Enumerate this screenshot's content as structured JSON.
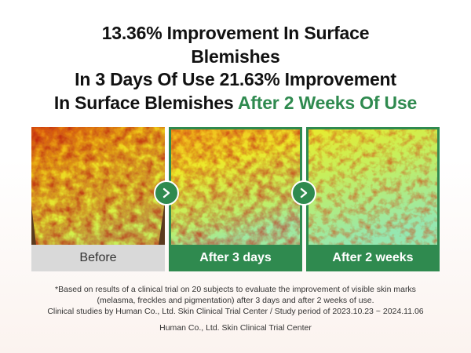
{
  "headline": {
    "line1": "13.36% Improvement In Surface",
    "line2": "Blemishes",
    "line3": "In 3 Days Of Use 21.63% Improvement",
    "line4_plain": "In Surface Blemishes ",
    "line4_accent": "After 2 Weeks Of Use"
  },
  "panels": [
    {
      "label": "Before"
    },
    {
      "label": "After 3 days"
    },
    {
      "label": "After 2 weeks"
    }
  ],
  "footnote": {
    "line1": "*Based on results of a clinical trial on 20 subjects to evaluate the improvement of visible skin marks",
    "line2": "(melasma, freckles and pigmentation) after 3 days and after 2 weeks of use.",
    "line3": "Clinical studies by Human Co., Ltd. Skin Clinical Trial Center / Study period of 2023.10.23 ~ 2024.11.06"
  },
  "credit": "Human Co., Ltd. Skin Clinical Trial Center",
  "colors": {
    "accent_green": "#2f8a4f",
    "before_label_bg": "#d9d9d9"
  },
  "icons": [
    "chevron-right-icon",
    "chevron-right-icon"
  ]
}
